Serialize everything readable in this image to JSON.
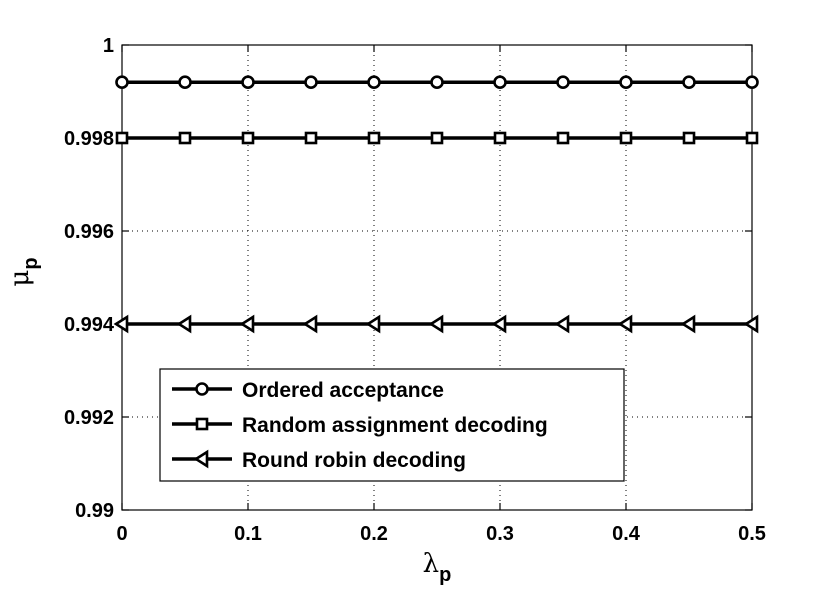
{
  "chart_data": {
    "type": "line",
    "x": [
      0,
      0.05,
      0.1,
      0.15,
      0.2,
      0.25,
      0.3,
      0.35,
      0.4,
      0.45,
      0.5
    ],
    "series": [
      {
        "name": "Ordered acceptance",
        "marker": "circle",
        "values": [
          0.9992,
          0.9992,
          0.9992,
          0.9992,
          0.9992,
          0.9992,
          0.9992,
          0.9992,
          0.9992,
          0.9992,
          0.9992
        ]
      },
      {
        "name": "Random assignment decoding",
        "marker": "square",
        "values": [
          0.998,
          0.998,
          0.998,
          0.998,
          0.998,
          0.998,
          0.998,
          0.998,
          0.998,
          0.998,
          0.998
        ]
      },
      {
        "name": "Round robin decoding",
        "marker": "triangle-left",
        "values": [
          0.994,
          0.994,
          0.994,
          0.994,
          0.994,
          0.994,
          0.994,
          0.994,
          0.994,
          0.994,
          0.994
        ]
      }
    ],
    "xlim": [
      0,
      0.5
    ],
    "ylim": [
      0.99,
      1
    ],
    "xticks": [
      0,
      0.1,
      0.2,
      0.3,
      0.4,
      0.5
    ],
    "xtick_labels": [
      "0",
      "0.1",
      "0.2",
      "0.3",
      "0.4",
      "0.5"
    ],
    "yticks": [
      0.99,
      0.992,
      0.994,
      0.996,
      0.998,
      1
    ],
    "ytick_labels": [
      "0.99",
      "0.992",
      "0.994",
      "0.996",
      "0.998",
      "1"
    ],
    "xlabel": {
      "symbol": "λ",
      "sub": "p"
    },
    "ylabel": {
      "symbol": "μ",
      "sub": "p"
    },
    "grid": true,
    "legend_position": "bottom-left",
    "line_color": "#000000"
  }
}
